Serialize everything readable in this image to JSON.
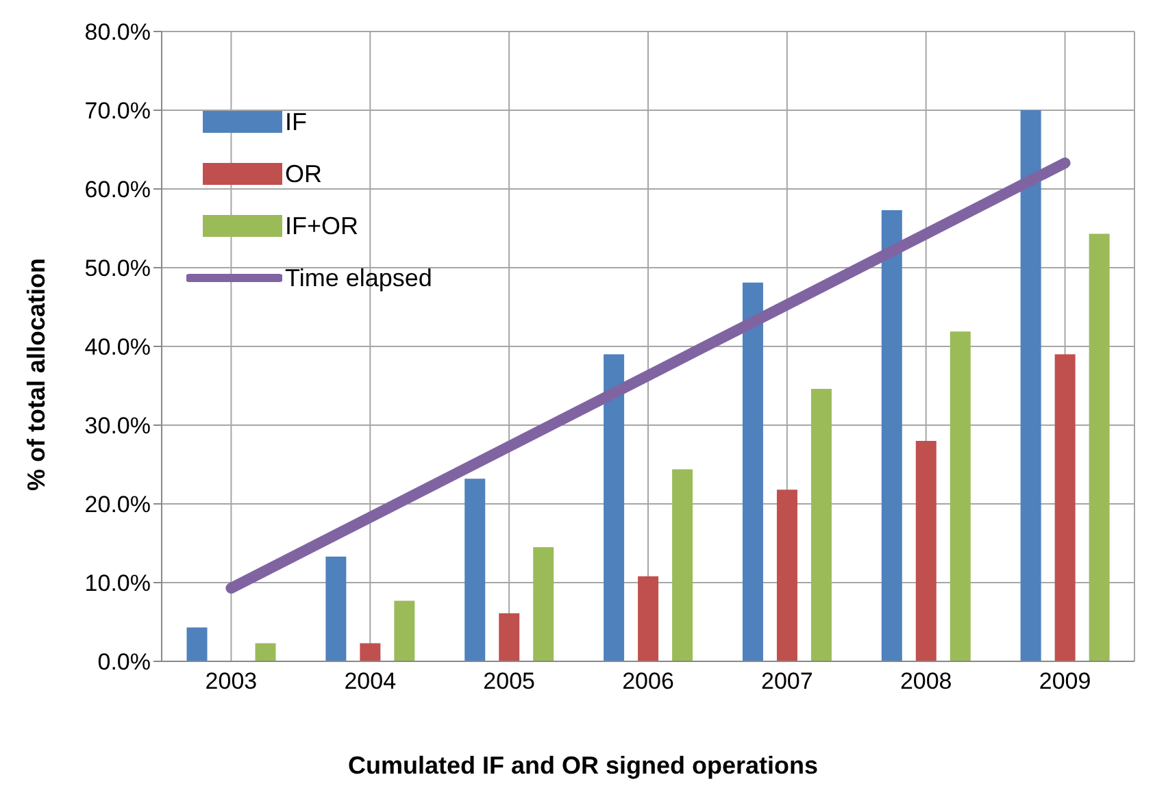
{
  "chart_data": {
    "type": "bar",
    "xlabel": "Cumulated IF and OR signed operations",
    "ylabel": "% of total allocation",
    "categories": [
      "2003",
      "2004",
      "2005",
      "2006",
      "2007",
      "2008",
      "2009"
    ],
    "series": [
      {
        "name": "IF",
        "color": "#4f81bd",
        "values": [
          4.3,
          13.3,
          23.2,
          39.0,
          48.1,
          57.3,
          70.0
        ]
      },
      {
        "name": "OR",
        "color": "#c0504d",
        "values": [
          0,
          2.3,
          6.1,
          10.8,
          21.8,
          28.0,
          39.0
        ]
      },
      {
        "name": "IF+OR",
        "color": "#9bbb59",
        "values": [
          2.3,
          7.7,
          14.5,
          24.4,
          34.6,
          41.9,
          54.3
        ]
      },
      {
        "name": "Time elapsed",
        "type": "line",
        "color": "#8064a2",
        "values": [
          9.3,
          18.3,
          27.3,
          36.3,
          45.3,
          54.3,
          63.3
        ]
      }
    ],
    "ylim": [
      0,
      80
    ],
    "yticks": [
      {
        "value": 0,
        "label": "0.0%"
      },
      {
        "value": 10,
        "label": "10.0%"
      },
      {
        "value": 20,
        "label": "20.0%"
      },
      {
        "value": 30,
        "label": "30.0%"
      },
      {
        "value": 40,
        "label": "40.0%"
      },
      {
        "value": 50,
        "label": "50.0%"
      },
      {
        "value": 60,
        "label": "60.0%"
      },
      {
        "value": 70,
        "label": "70.0%"
      },
      {
        "value": 80,
        "label": "80.0%"
      }
    ],
    "grid": true,
    "legend": "top left",
    "marker": "none",
    "line_style": "solid"
  }
}
